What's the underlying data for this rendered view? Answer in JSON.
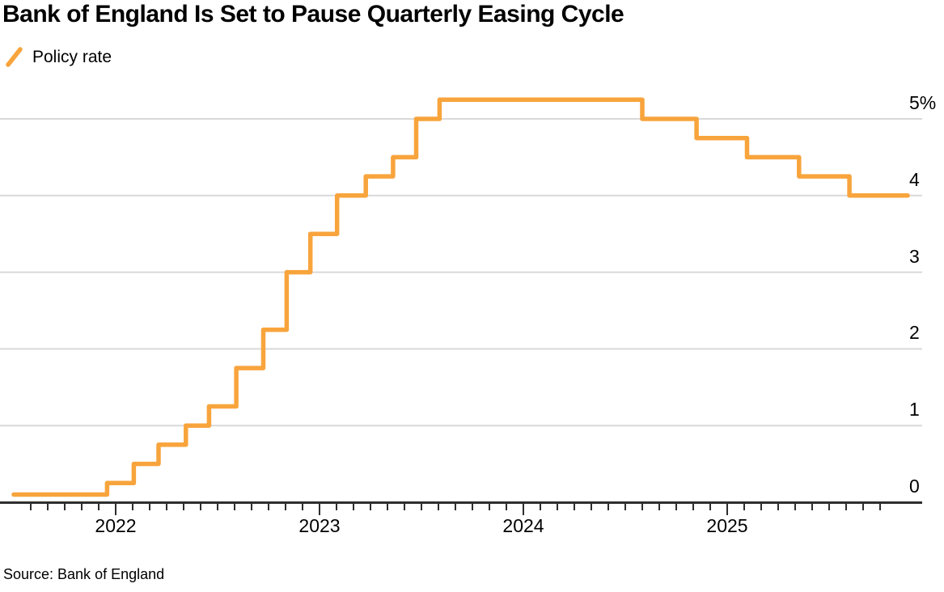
{
  "title": "Bank of England Is Set to Pause Quarterly Easing Cycle",
  "legend": {
    "items": [
      {
        "label": "Policy rate",
        "marker": "slash-icon",
        "color": "#F8A43C"
      }
    ]
  },
  "source": "Source: Bank of England",
  "colors": {
    "line": "#F8A43C",
    "grid": "#D9D9D9",
    "axis": "#2E2E2E",
    "text": "#000000",
    "background": "#FFFFFF"
  },
  "chart_data": {
    "type": "line",
    "line_style": "step-after",
    "title": "Bank of England Is Set to Pause Quarterly Easing Cycle",
    "xlabel": "",
    "ylabel": "",
    "unit": "%",
    "grid": "horizontal",
    "legend_position": "top-left",
    "x_range": [
      "2021-07",
      "2025-12"
    ],
    "y_range": [
      0,
      5.5
    ],
    "series": [
      {
        "name": "Policy rate",
        "color": "#F8A43C",
        "points": [
          {
            "date": "2021-07-01",
            "rate": 0.1
          },
          {
            "date": "2021-12-16",
            "rate": 0.25
          },
          {
            "date": "2022-02-03",
            "rate": 0.5
          },
          {
            "date": "2022-03-17",
            "rate": 0.75
          },
          {
            "date": "2022-05-05",
            "rate": 1.0
          },
          {
            "date": "2022-06-16",
            "rate": 1.25
          },
          {
            "date": "2022-08-04",
            "rate": 1.75
          },
          {
            "date": "2022-09-22",
            "rate": 2.25
          },
          {
            "date": "2022-11-03",
            "rate": 3.0
          },
          {
            "date": "2022-12-15",
            "rate": 3.5
          },
          {
            "date": "2023-02-02",
            "rate": 4.0
          },
          {
            "date": "2023-03-23",
            "rate": 4.25
          },
          {
            "date": "2023-05-11",
            "rate": 4.5
          },
          {
            "date": "2023-06-22",
            "rate": 5.0
          },
          {
            "date": "2023-08-03",
            "rate": 5.25
          },
          {
            "date": "2024-08-01",
            "rate": 5.0
          },
          {
            "date": "2024-11-07",
            "rate": 4.75
          },
          {
            "date": "2025-02-06",
            "rate": 4.5
          },
          {
            "date": "2025-05-08",
            "rate": 4.25
          },
          {
            "date": "2025-08-07",
            "rate": 4.0
          },
          {
            "date": "2025-11-20",
            "rate": 4.0
          }
        ]
      }
    ],
    "y_ticks": [
      {
        "value": 0,
        "label": "0"
      },
      {
        "value": 1,
        "label": "1"
      },
      {
        "value": 2,
        "label": "2"
      },
      {
        "value": 3,
        "label": "3"
      },
      {
        "value": 4,
        "label": "4"
      },
      {
        "value": 5,
        "label": "5%"
      }
    ],
    "x_ticks": [
      {
        "year": 2022,
        "label": "2022"
      },
      {
        "year": 2023,
        "label": "2023"
      },
      {
        "year": 2024,
        "label": "2024"
      },
      {
        "year": 2025,
        "label": "2025"
      }
    ],
    "minor_ticks": "monthly"
  }
}
